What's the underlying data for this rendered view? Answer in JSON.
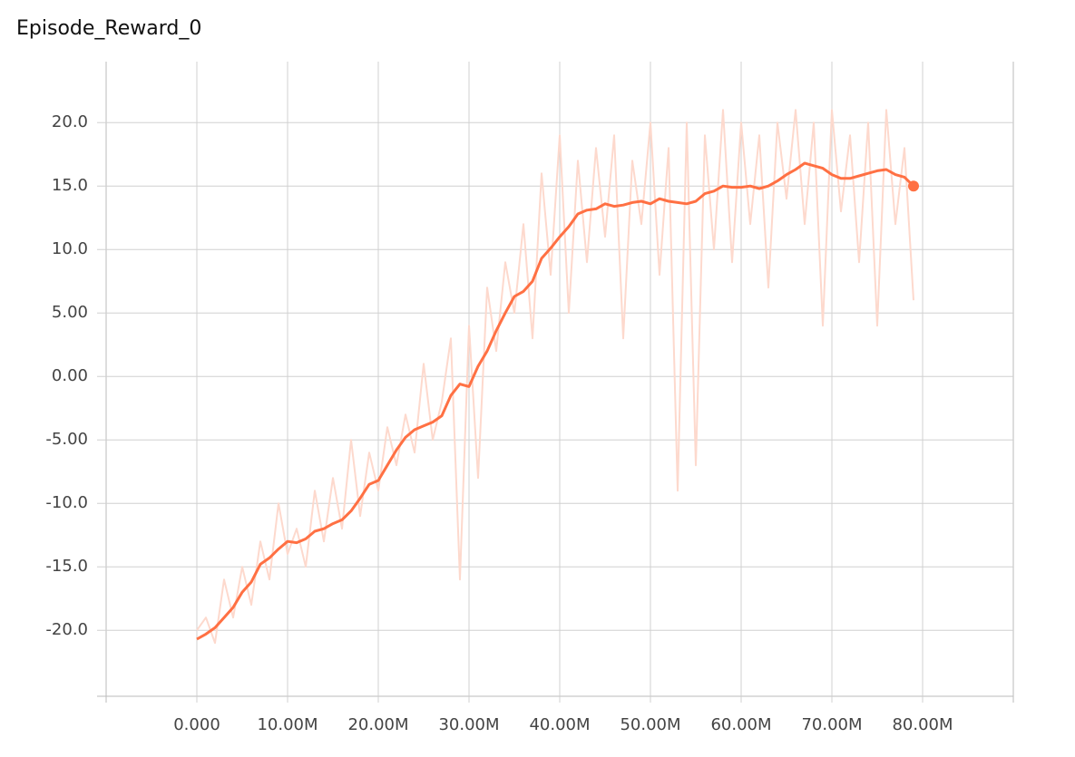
{
  "chart_data": {
    "type": "line",
    "title": "Episode_Reward_0",
    "x": [
      0,
      1000000,
      2000000,
      3000000,
      4000000,
      5000000,
      6000000,
      7000000,
      8000000,
      9000000,
      10000000,
      11000000,
      12000000,
      13000000,
      14000000,
      15000000,
      16000000,
      17000000,
      18000000,
      19000000,
      20000000,
      21000000,
      22000000,
      23000000,
      24000000,
      25000000,
      26000000,
      27000000,
      28000000,
      29000000,
      30000000,
      31000000,
      32000000,
      33000000,
      34000000,
      35000000,
      36000000,
      37000000,
      38000000,
      39000000,
      40000000,
      41000000,
      42000000,
      43000000,
      44000000,
      45000000,
      46000000,
      47000000,
      48000000,
      49000000,
      50000000,
      51000000,
      52000000,
      53000000,
      54000000,
      55000000,
      56000000,
      57000000,
      58000000,
      59000000,
      60000000,
      61000000,
      62000000,
      63000000,
      64000000,
      65000000,
      66000000,
      67000000,
      68000000,
      69000000,
      70000000,
      71000000,
      72000000,
      73000000,
      74000000,
      75000000,
      76000000,
      77000000,
      78000000,
      79000000
    ],
    "series": [
      {
        "color": "#fdd9cd",
        "values": [
          -20,
          -19,
          -21,
          -16,
          -19,
          -15,
          -18,
          -13,
          -16,
          -10,
          -14,
          -12,
          -15,
          -9,
          -13,
          -8,
          -12,
          -5,
          -11,
          -6,
          -9,
          -4,
          -7,
          -3,
          -6,
          1,
          -5,
          -2,
          3,
          -16,
          4,
          -8,
          7,
          2,
          9,
          5,
          12,
          3,
          16,
          8,
          19,
          5,
          17,
          9,
          18,
          11,
          19,
          3,
          17,
          12,
          20,
          8,
          18,
          -9,
          20,
          -7,
          19,
          10,
          21,
          9,
          20,
          12,
          19,
          7,
          20,
          14,
          21,
          12,
          20,
          4,
          21,
          13,
          19,
          9,
          20,
          4,
          21,
          12,
          18,
          6
        ]
      },
      {
        "color": "#ff7043",
        "values": [
          -20.7,
          -20.3,
          -19.8,
          -19.0,
          -18.2,
          -17.0,
          -16.2,
          -14.8,
          -14.3,
          -13.6,
          -13.0,
          -13.1,
          -12.8,
          -12.2,
          -12.0,
          -11.6,
          -11.3,
          -10.6,
          -9.6,
          -8.5,
          -8.2,
          -7.0,
          -5.8,
          -4.8,
          -4.2,
          -3.9,
          -3.6,
          -3.1,
          -1.5,
          -0.6,
          -0.8,
          0.8,
          2.0,
          3.6,
          5.0,
          6.3,
          6.7,
          7.5,
          9.3,
          10.1,
          11.0,
          11.8,
          12.8,
          13.1,
          13.2,
          13.6,
          13.4,
          13.5,
          13.7,
          13.8,
          13.6,
          14.0,
          13.8,
          13.7,
          13.6,
          13.8,
          14.4,
          14.6,
          15.0,
          14.9,
          14.9,
          15.0,
          14.8,
          15.0,
          15.4,
          15.9,
          16.3,
          16.8,
          16.6,
          16.4,
          15.9,
          15.6,
          15.6,
          15.8,
          16.0,
          16.2,
          16.3,
          15.9,
          15.7,
          15.0
        ]
      }
    ],
    "xlim": [
      -10000000,
      90000000
    ],
    "ylim": [
      -25.2,
      24.8
    ],
    "xticks": [
      {
        "value": 0,
        "label": "0.000"
      },
      {
        "value": 10000000,
        "label": "10.00M"
      },
      {
        "value": 20000000,
        "label": "20.00M"
      },
      {
        "value": 30000000,
        "label": "30.00M"
      },
      {
        "value": 40000000,
        "label": "40.00M"
      },
      {
        "value": 50000000,
        "label": "50.00M"
      },
      {
        "value": 60000000,
        "label": "60.00M"
      },
      {
        "value": 70000000,
        "label": "70.00M"
      },
      {
        "value": 80000000,
        "label": "80.00M"
      }
    ],
    "yticks": [
      {
        "value": 20,
        "label": "20.0"
      },
      {
        "value": 15,
        "label": "15.0"
      },
      {
        "value": 10,
        "label": "10.0"
      },
      {
        "value": 5,
        "label": "5.00"
      },
      {
        "value": 0,
        "label": "0.00"
      },
      {
        "value": -5,
        "label": "-5.00"
      },
      {
        "value": -10,
        "label": "-10.0"
      },
      {
        "value": -15,
        "label": "-15.0"
      },
      {
        "value": -20,
        "label": "-20.0"
      }
    ],
    "grid": true
  }
}
